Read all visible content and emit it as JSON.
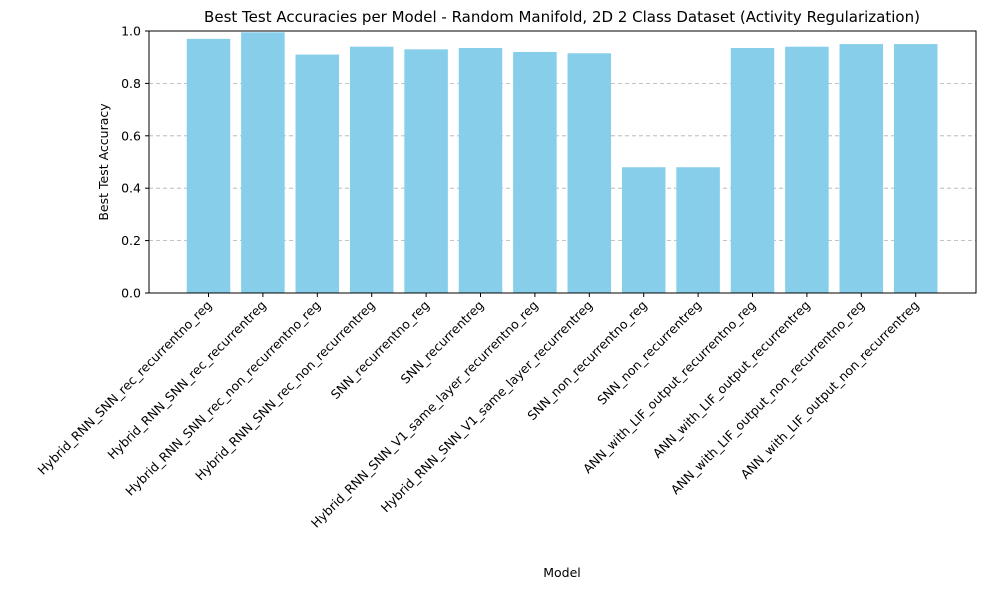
{
  "chart_data": {
    "type": "bar",
    "title": "Best Test Accuracies per Model - Random Manifold, 2D 2 Class Dataset (Activity Regularization)",
    "xlabel": "Model",
    "ylabel": "Best Test Accuracy",
    "ylim": [
      0,
      1.0
    ],
    "yticks": [
      "0.0",
      "0.2",
      "0.4",
      "0.6",
      "0.8",
      "1.0"
    ],
    "grid": "y-dashed",
    "bar_color": "#87ceeb",
    "categories": [
      "Hybrid_RNN_SNN_rec_recurrentno_reg",
      "Hybrid_RNN_SNN_rec_recurrentreg",
      "Hybrid_RNN_SNN_rec_non_recurrentno_reg",
      "Hybrid_RNN_SNN_rec_non_recurrentreg",
      "SNN_recurrentno_reg",
      "SNN_recurrentreg",
      "Hybrid_RNN_SNN_V1_same_layer_recurrentno_reg",
      "Hybrid_RNN_SNN_V1_same_layer_recurrentreg",
      "SNN_non_recurrentno_reg",
      "SNN_non_recurrentreg",
      "ANN_with_LIF_output_recurrentno_reg",
      "ANN_with_LIF_output_recurrentreg",
      "ANN_with_LIF_output_non_recurrentno_reg",
      "ANN_with_LIF_output_non_recurrentreg"
    ],
    "values": [
      0.97,
      0.995,
      0.91,
      0.94,
      0.93,
      0.935,
      0.92,
      0.915,
      0.48,
      0.48,
      0.935,
      0.94,
      0.95,
      0.95
    ]
  }
}
